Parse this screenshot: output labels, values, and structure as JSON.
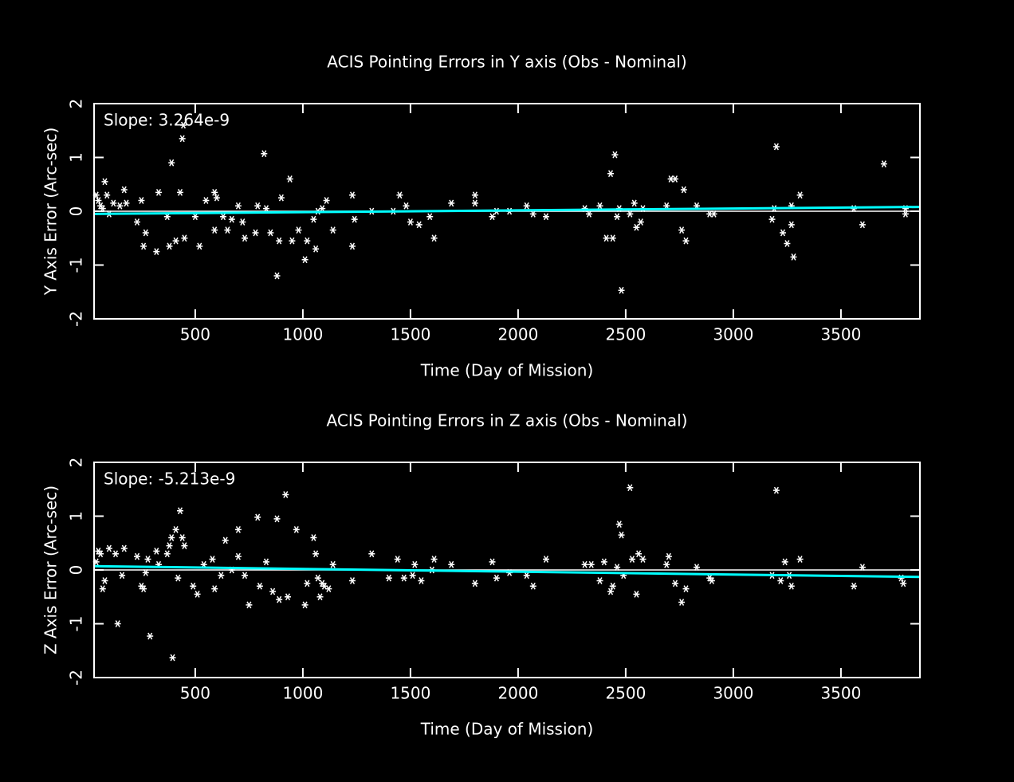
{
  "chart_data": [
    {
      "type": "scatter",
      "title": "ACIS Pointing Errors in Y axis (Obs - Nominal)",
      "xlabel": "Time (Day of Mission)",
      "ylabel": "Y Axis Error (Arc-sec)",
      "annotation": "Slope: 3.264e-9",
      "color": "#ffffff",
      "marker": "asterisk",
      "xlim": [
        30,
        3867
      ],
      "ylim": [
        -2,
        2
      ],
      "xticks": [
        500,
        1000,
        1500,
        2000,
        2500,
        3000,
        3500
      ],
      "yticks": [
        -2,
        -1,
        0,
        1,
        2
      ],
      "hline": 0,
      "fit": {
        "x": [
          30,
          3867
        ],
        "values": [
          -0.05,
          0.08
        ],
        "color": "#00ffff"
      },
      "x": [
        40,
        50,
        60,
        70,
        80,
        90,
        100,
        120,
        150,
        170,
        180,
        230,
        250,
        260,
        270,
        320,
        330,
        370,
        380,
        390,
        410,
        430,
        440,
        445,
        450,
        500,
        520,
        550,
        590,
        590,
        600,
        630,
        650,
        670,
        700,
        720,
        730,
        780,
        790,
        820,
        830,
        850,
        880,
        890,
        900,
        940,
        950,
        980,
        1010,
        1020,
        1050,
        1060,
        1070,
        1090,
        1110,
        1140,
        1230,
        1230,
        1240,
        1320,
        1420,
        1450,
        1480,
        1500,
        1540,
        1590,
        1610,
        1690,
        1800,
        1800,
        1880,
        1900,
        1960,
        2040,
        2070,
        2130,
        2310,
        2330,
        2380,
        2410,
        2430,
        2450,
        2440,
        2460,
        2470,
        2480,
        2520,
        2540,
        2550,
        2570,
        2580,
        2690,
        2710,
        2730,
        2760,
        2770,
        2780,
        2830,
        2890,
        2910,
        3180,
        3190,
        3200,
        3230,
        3250,
        3270,
        3270,
        3280,
        3310,
        3560,
        3600,
        3700,
        3800,
        3800
      ],
      "values": [
        0.3,
        0.2,
        0.1,
        0.05,
        0.55,
        0.3,
        -0.05,
        0.15,
        0.1,
        0.4,
        0.15,
        -0.2,
        0.2,
        -0.65,
        -0.4,
        -0.75,
        0.35,
        -0.1,
        -0.65,
        0.9,
        -0.55,
        0.35,
        1.35,
        1.6,
        -0.5,
        -0.1,
        -0.65,
        0.2,
        0.35,
        -0.35,
        0.25,
        -0.1,
        -0.35,
        -0.15,
        0.1,
        -0.2,
        -0.5,
        -0.4,
        0.1,
        1.07,
        0.05,
        -0.4,
        -1.2,
        -0.55,
        0.25,
        0.6,
        -0.55,
        -0.35,
        -0.9,
        -0.55,
        -0.15,
        -0.7,
        0,
        0.05,
        0.2,
        -0.35,
        0.3,
        -0.65,
        -0.15,
        0,
        0,
        0.3,
        0.1,
        -0.2,
        -0.25,
        -0.1,
        -0.5,
        0.15,
        0.3,
        0.15,
        -0.1,
        0,
        0,
        0.1,
        -0.05,
        -0.1,
        0.05,
        -0.05,
        0.1,
        -0.5,
        0.7,
        1.05,
        -0.5,
        -0.1,
        0.05,
        -1.47,
        -0.05,
        0.15,
        -0.3,
        -0.2,
        0.05,
        0.1,
        0.6,
        0.6,
        -0.35,
        0.4,
        -0.55,
        0.1,
        -0.05,
        -0.05,
        -0.15,
        0.05,
        1.2,
        -0.4,
        -0.6,
        0.1,
        -0.25,
        -0.85,
        0.3,
        0.05,
        -0.25,
        0.88,
        0.05,
        -0.05
      ]
    },
    {
      "type": "scatter",
      "title": "ACIS Pointing Errors in  Z axis (Obs - Nominal)",
      "xlabel": "Time (Day of Mission)",
      "ylabel": "Z Axis Error (Arc-sec)",
      "annotation": "Slope: -5.213e-9",
      "color": "#ffffff",
      "marker": "asterisk",
      "xlim": [
        30,
        3867
      ],
      "ylim": [
        -2,
        2
      ],
      "xticks": [
        500,
        1000,
        1500,
        2000,
        2500,
        3000,
        3500
      ],
      "yticks": [
        -2,
        -1,
        0,
        1,
        2
      ],
      "hline": 0,
      "fit": {
        "x": [
          30,
          3867
        ],
        "values": [
          0.07,
          -0.13
        ],
        "color": "#00ffff"
      },
      "x": [
        40,
        50,
        60,
        70,
        80,
        100,
        130,
        140,
        160,
        170,
        230,
        250,
        260,
        270,
        280,
        290,
        320,
        330,
        370,
        380,
        390,
        395,
        410,
        420,
        430,
        440,
        450,
        490,
        510,
        540,
        580,
        590,
        620,
        640,
        670,
        700,
        700,
        730,
        750,
        790,
        800,
        830,
        860,
        880,
        890,
        920,
        930,
        970,
        1010,
        1020,
        1050,
        1060,
        1070,
        1080,
        1090,
        1100,
        1120,
        1140,
        1230,
        1320,
        1400,
        1440,
        1470,
        1510,
        1520,
        1550,
        1600,
        1610,
        1690,
        1800,
        1880,
        1900,
        1960,
        2040,
        2070,
        2130,
        2310,
        2340,
        2380,
        2400,
        2430,
        2440,
        2460,
        2470,
        2480,
        2490,
        2520,
        2530,
        2550,
        2560,
        2580,
        2690,
        2700,
        2730,
        2760,
        2780,
        2830,
        2890,
        2900,
        3180,
        3200,
        3220,
        3240,
        3260,
        3270,
        3310,
        3560,
        3600,
        3780,
        3790
      ],
      "values": [
        0.15,
        0.35,
        0.3,
        -0.35,
        -0.2,
        0.4,
        0.3,
        -1.0,
        -0.1,
        0.4,
        0.25,
        -0.3,
        -0.35,
        -0.05,
        0.2,
        -1.23,
        0.35,
        0.1,
        0.3,
        0.45,
        0.6,
        -1.63,
        0.75,
        -0.15,
        1.1,
        0.6,
        0.45,
        -0.3,
        -0.45,
        0.1,
        0.2,
        -0.35,
        -0.1,
        0.55,
        0,
        0.25,
        0.75,
        -0.1,
        -0.65,
        0.98,
        -0.3,
        0.15,
        -0.4,
        0.95,
        -0.55,
        1.4,
        -0.5,
        0.75,
        -0.65,
        -0.25,
        0.6,
        0.3,
        -0.15,
        -0.5,
        -0.25,
        -0.3,
        -0.35,
        0.1,
        -0.2,
        0.3,
        -0.15,
        0.2,
        -0.15,
        -0.1,
        0.1,
        -0.2,
        0,
        0.2,
        0.1,
        -0.25,
        0.15,
        -0.15,
        -0.05,
        -0.1,
        -0.3,
        0.2,
        0.1,
        0.1,
        -0.2,
        0.15,
        -0.4,
        -0.3,
        0.05,
        0.85,
        0.65,
        -0.1,
        1.53,
        0.2,
        -0.45,
        0.3,
        0.2,
        0.1,
        0.25,
        -0.25,
        -0.6,
        -0.35,
        0.05,
        -0.15,
        -0.2,
        -0.1,
        1.48,
        -0.2,
        0.15,
        -0.1,
        -0.3,
        0.2,
        -0.3,
        0.05,
        -0.15,
        -0.25
      ]
    }
  ]
}
